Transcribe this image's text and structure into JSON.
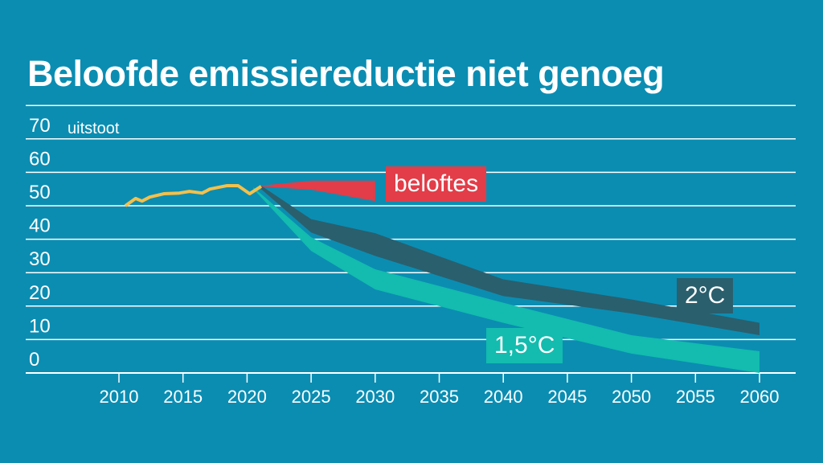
{
  "title": "Beloofde emissiereductie niet genoeg",
  "colors": {
    "background": "#0b8db2",
    "historic": "#f5c04a",
    "pledges": "#e23d48",
    "two_degrees": "#2a5f6d",
    "one_five_degrees": "#13bcae",
    "grid": "#ffffff"
  },
  "chart_data": {
    "type": "area",
    "title": "Beloofde emissiereductie niet genoeg",
    "ylabel": "uitstoot",
    "xlabel": "",
    "xlim": [
      2010,
      2060
    ],
    "ylim": [
      0,
      80
    ],
    "yticks": [
      "0",
      "10",
      "20",
      "30",
      "40",
      "50",
      "60",
      "70"
    ],
    "xticks": [
      "2010",
      "2015",
      "2020",
      "2025",
      "2030",
      "2035",
      "2040",
      "2045",
      "2050",
      "2055",
      "2060"
    ],
    "grid": true,
    "historic": {
      "x": [
        2010.5,
        2011.3,
        2011.8,
        2012.4,
        2013.5,
        2014.7,
        2015.5,
        2016.5,
        2017.1,
        2018.4,
        2019.3,
        2020.2,
        2021.1
      ],
      "y": [
        50,
        52.2,
        51.4,
        52.6,
        53.6,
        53.8,
        54.3,
        53.8,
        55,
        56,
        56,
        53.6,
        55.8
      ]
    },
    "series": [
      {
        "name": "beloftes",
        "x": [
          2021.1,
          2025,
          2030
        ],
        "upper": [
          56,
          57.5,
          57.5
        ],
        "lower": [
          55.8,
          54.8,
          51.4
        ]
      },
      {
        "name": "2°C",
        "x": [
          2021.1,
          2025,
          2030,
          2040,
          2050,
          2060
        ],
        "upper": [
          56,
          46,
          41.8,
          28,
          22,
          15
        ],
        "lower": [
          55,
          42,
          35,
          23,
          17.8,
          11.3
        ]
      },
      {
        "name": "1,5°C",
        "x": [
          2020.5,
          2025,
          2030,
          2040,
          2050,
          2060
        ],
        "upper": [
          55.5,
          40.6,
          31,
          21,
          11.3,
          6.5
        ],
        "lower": [
          55,
          36.5,
          25,
          15,
          5.8,
          0
        ]
      }
    ]
  }
}
